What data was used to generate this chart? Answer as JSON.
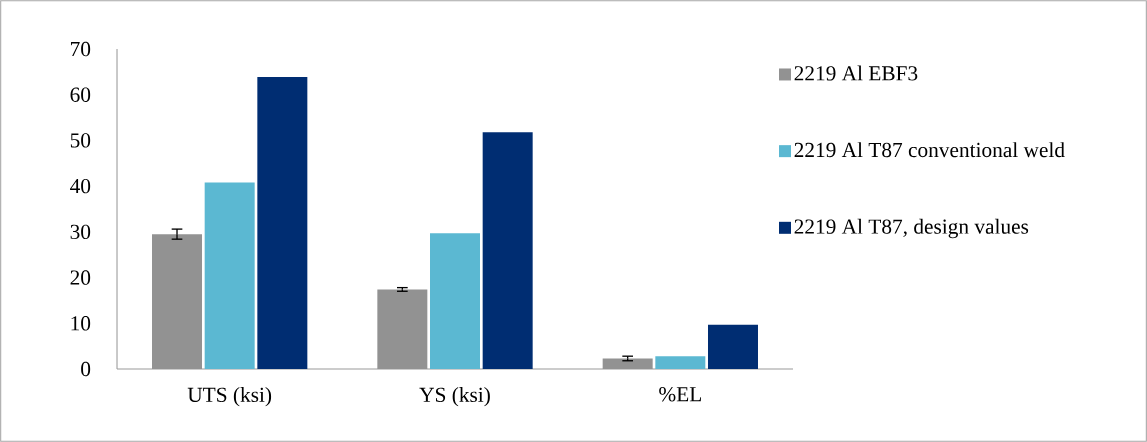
{
  "chart_data": {
    "type": "bar",
    "categories": [
      "UTS (ksi)",
      "YS (ksi)",
      "%EL"
    ],
    "series": [
      {
        "name": "2219 Al EBF3",
        "color": "#929292",
        "values": [
          29.5,
          17.4,
          2.3
        ],
        "errors": [
          1.1,
          0.4,
          0.5
        ]
      },
      {
        "name": "2219 Al T87 conventional weld",
        "color": "#5bb8d2",
        "values": [
          40.8,
          29.7,
          2.8
        ]
      },
      {
        "name": "2219 Al T87, design values",
        "color": "#002d72",
        "values": [
          63.9,
          51.8,
          9.7
        ]
      }
    ],
    "ylim": [
      0,
      70
    ],
    "yticks": [
      0,
      10,
      20,
      30,
      40,
      50,
      60,
      70
    ],
    "grid": false,
    "legend": "right"
  }
}
